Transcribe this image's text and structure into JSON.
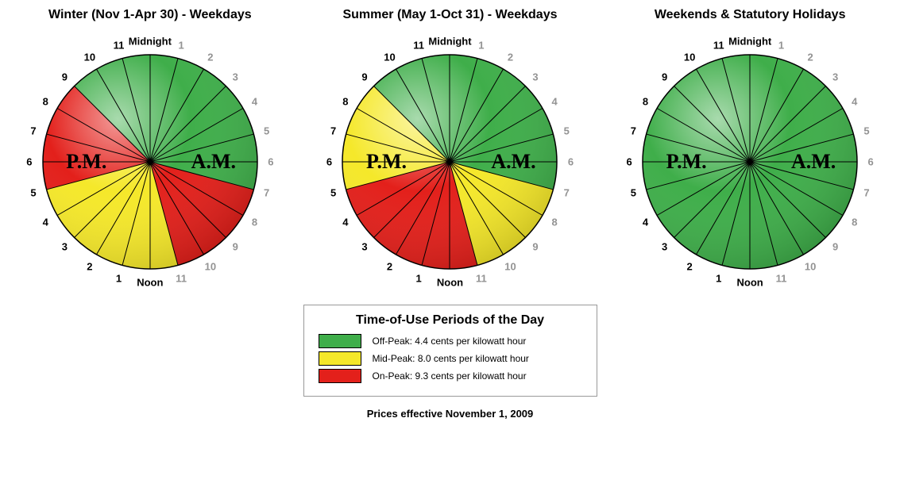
{
  "colors": {
    "off_peak": "#3fae4a",
    "mid_peak": "#f5e82a",
    "on_peak": "#e3201b",
    "stroke": "#000000",
    "am_label": "#939393",
    "pm_label": "#000000",
    "mn_label": "#000000"
  },
  "clock": {
    "radius": 135,
    "label_radius": 152,
    "ampm_inset": 80,
    "hour_fontsize": 13,
    "ampm_fontsize": 26,
    "title_fontsize": 16
  },
  "hour_labels": {
    "0": "Midnight",
    "1": "1",
    "2": "2",
    "3": "3",
    "4": "4",
    "5": "5",
    "6": "6",
    "7": "7",
    "8": "8",
    "9": "9",
    "10": "10",
    "11": "11",
    "12": "Noon",
    "13": "1",
    "14": "2",
    "15": "3",
    "16": "4",
    "17": "5",
    "18": "6",
    "19": "7",
    "20": "8",
    "21": "9",
    "22": "10",
    "23": "11"
  },
  "am_text": "A.M.",
  "pm_text": "P.M.",
  "clocks": [
    {
      "title": "Winter (Nov 1-Apr 30) - Weekdays",
      "segments": [
        {
          "from": 0,
          "to": 7,
          "tier": "off_peak"
        },
        {
          "from": 7,
          "to": 11,
          "tier": "on_peak"
        },
        {
          "from": 11,
          "to": 17,
          "tier": "mid_peak"
        },
        {
          "from": 17,
          "to": 21,
          "tier": "on_peak"
        },
        {
          "from": 21,
          "to": 24,
          "tier": "off_peak"
        }
      ]
    },
    {
      "title": "Summer (May 1-Oct 31) - Weekdays",
      "segments": [
        {
          "from": 0,
          "to": 7,
          "tier": "off_peak"
        },
        {
          "from": 7,
          "to": 11,
          "tier": "mid_peak"
        },
        {
          "from": 11,
          "to": 17,
          "tier": "on_peak"
        },
        {
          "from": 17,
          "to": 21,
          "tier": "mid_peak"
        },
        {
          "from": 21,
          "to": 24,
          "tier": "off_peak"
        }
      ]
    },
    {
      "title": "Weekends & Statutory Holidays",
      "segments": [
        {
          "from": 0,
          "to": 24,
          "tier": "off_peak"
        }
      ]
    }
  ],
  "legend": {
    "title": "Time-of-Use Periods of the Day",
    "items": [
      {
        "tier": "off_peak",
        "label": "Off-Peak: 4.4 cents per kilowatt hour"
      },
      {
        "tier": "mid_peak",
        "label": "Mid-Peak: 8.0 cents per kilowatt hour"
      },
      {
        "tier": "on_peak",
        "label": "On-Peak: 9.3 cents per kilowatt hour"
      }
    ]
  },
  "footer": "Prices effective November 1, 2009"
}
